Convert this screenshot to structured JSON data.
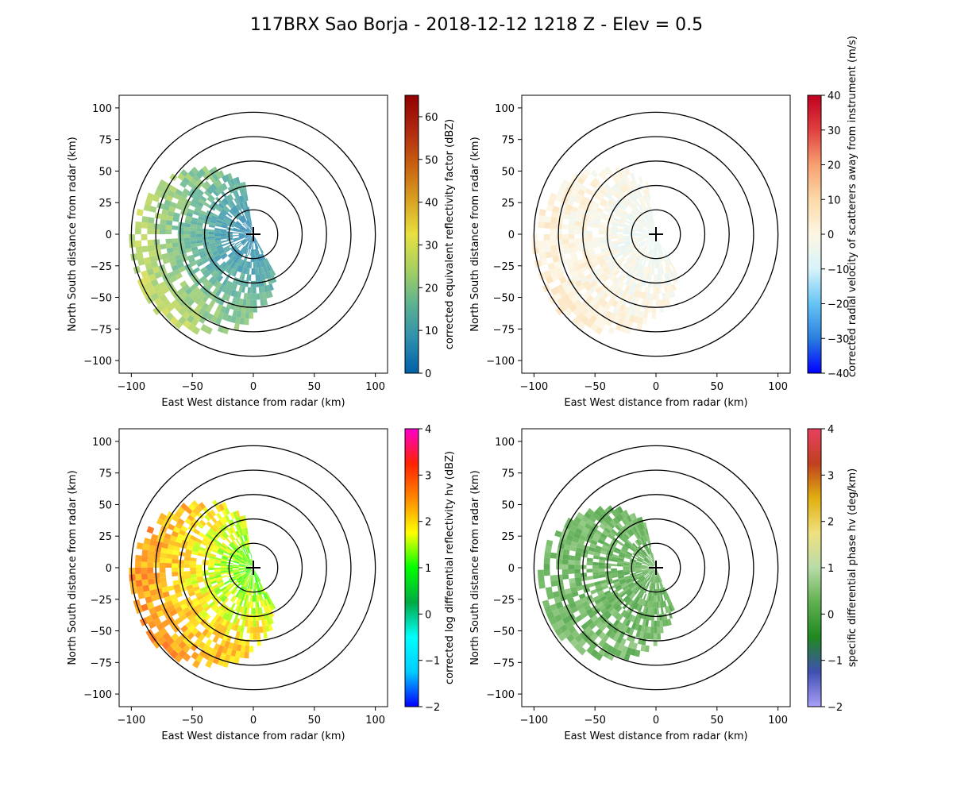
{
  "figure": {
    "title": "117BRX Sao Borja - 2018-12-12 1218 Z -  Elev = 0.5"
  },
  "chart_data": [
    {
      "type": "heatmap",
      "id": "reflectivity",
      "xlabel": "East West distance from radar (km)",
      "ylabel": "North South distance from radar (km)",
      "xlim": [
        -110,
        110
      ],
      "ylim": [
        -110,
        110
      ],
      "xticks": [
        -100,
        -50,
        0,
        50,
        100
      ],
      "yticks": [
        -100,
        -75,
        -50,
        -25,
        0,
        25,
        50,
        75,
        100
      ],
      "range_rings_km": [
        20,
        40,
        60,
        80,
        100
      ],
      "colorbar": {
        "label": "corrected equivalent reflectivity factor (dBZ)",
        "min": 0,
        "max": 65,
        "ticks": [
          0,
          10,
          20,
          30,
          40,
          50,
          60
        ],
        "colors": [
          "#0060a8",
          "#2e8fae",
          "#5db38f",
          "#a8d060",
          "#e8e040",
          "#d8a020",
          "#c86010",
          "#b02810",
          "#900000"
        ]
      },
      "echo_region": {
        "az_start": 150,
        "az_end": 350,
        "max_range_km": 100,
        "value_near": 5,
        "value_far": 28
      }
    },
    {
      "type": "heatmap",
      "id": "velocity",
      "xlabel": "East West distance from radar (km)",
      "ylabel": "North South distance from radar (km)",
      "xlim": [
        -110,
        110
      ],
      "ylim": [
        -110,
        110
      ],
      "xticks": [
        -100,
        -50,
        0,
        50,
        100
      ],
      "yticks": [
        -100,
        -75,
        -50,
        -25,
        0,
        25,
        50,
        75,
        100
      ],
      "range_rings_km": [
        20,
        40,
        60,
        80,
        100
      ],
      "colorbar": {
        "label": "corrected radial velocity of scatterers away from instrument (m/s)",
        "min": -40,
        "max": 40,
        "ticks": [
          -40,
          -30,
          -20,
          -10,
          0,
          10,
          20,
          30,
          40
        ],
        "colors": [
          "#0000ff",
          "#2a7fe0",
          "#66c4f4",
          "#d8f4fb",
          "#fdf6e3",
          "#fcd9a8",
          "#f8a070",
          "#e04040",
          "#c00020"
        ]
      },
      "echo_region": {
        "az_start": 150,
        "az_end": 350,
        "max_range_km": 100,
        "value_near": -5,
        "value_far": 4
      }
    },
    {
      "type": "heatmap",
      "id": "zdr",
      "xlabel": "East West distance from radar (km)",
      "ylabel": "North South distance from radar (km)",
      "xlim": [
        -110,
        110
      ],
      "ylim": [
        -110,
        110
      ],
      "xticks": [
        -100,
        -50,
        0,
        50,
        100
      ],
      "yticks": [
        -100,
        -75,
        -50,
        -25,
        0,
        25,
        50,
        75,
        100
      ],
      "range_rings_km": [
        20,
        40,
        60,
        80,
        100
      ],
      "colorbar": {
        "label": "corrected log differential reflectivity hv (dBZ)",
        "min": -2,
        "max": 4,
        "ticks": [
          -2,
          -1,
          0,
          1,
          2,
          3,
          4
        ],
        "colors": [
          "#0000ff",
          "#00ccff",
          "#00ffff",
          "#00aa44",
          "#00ff00",
          "#ffff00",
          "#ff8800",
          "#ff2200",
          "#ff00cc"
        ]
      },
      "echo_region": {
        "az_start": 150,
        "az_end": 350,
        "max_range_km": 100,
        "value_near": 1.2,
        "value_far": 2.6
      }
    },
    {
      "type": "heatmap",
      "id": "kdp",
      "xlabel": "East West distance from radar (km)",
      "ylabel": "North South distance from radar (km)",
      "xlim": [
        -110,
        110
      ],
      "ylim": [
        -110,
        110
      ],
      "xticks": [
        -100,
        -50,
        0,
        50,
        100
      ],
      "yticks": [
        -100,
        -75,
        -50,
        -25,
        0,
        25,
        50,
        75,
        100
      ],
      "range_rings_km": [
        20,
        40,
        60,
        80,
        100
      ],
      "colorbar": {
        "label": "specific differential phase hv (deg/km)",
        "min": -2,
        "max": 4,
        "ticks": [
          -2,
          -1,
          0,
          1,
          2,
          3,
          4
        ],
        "colors": [
          "#a8a0f8",
          "#4050b0",
          "#208820",
          "#60b050",
          "#b8dca8",
          "#f0e080",
          "#e0b010",
          "#c04020",
          "#e84060"
        ]
      },
      "echo_region": {
        "az_start": 155,
        "az_end": 345,
        "max_range_km": 95,
        "value_near": 0.1,
        "value_far": 0.3
      }
    }
  ]
}
